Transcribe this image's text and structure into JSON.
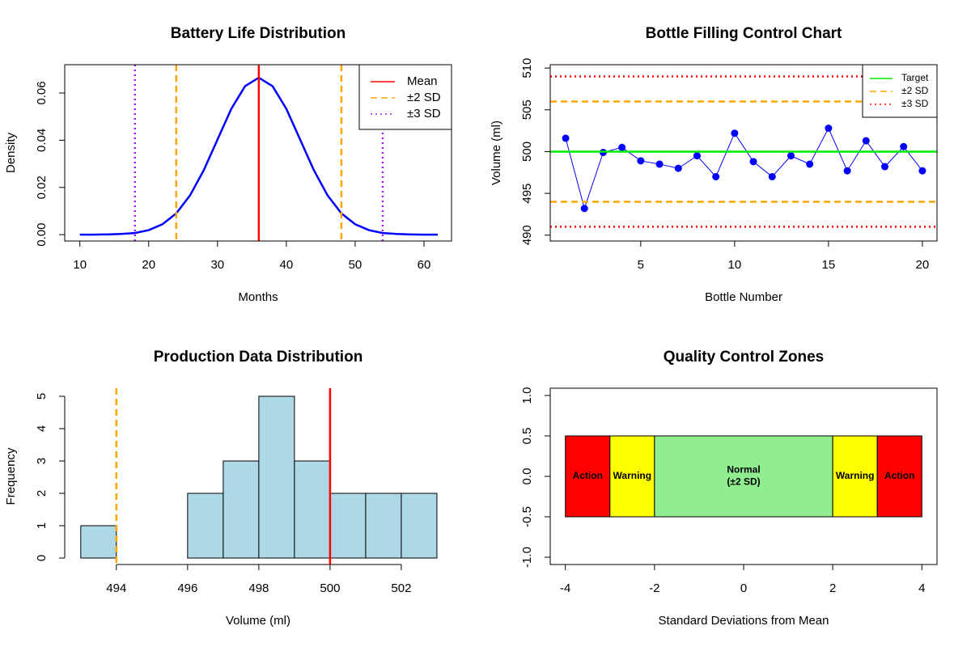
{
  "chart_data": [
    {
      "type": "line",
      "title": "Battery Life Distribution",
      "xlabel": "Months",
      "ylabel": "Density",
      "x": [
        10,
        12,
        14,
        16,
        18,
        20,
        22,
        24,
        26,
        28,
        30,
        32,
        34,
        36,
        38,
        40,
        42,
        44,
        46,
        48,
        50,
        52,
        54,
        56,
        58,
        60,
        62
      ],
      "values": [
        0.0,
        0.0,
        0.0001,
        0.0003,
        0.0007,
        0.0019,
        0.0044,
        0.009,
        0.0166,
        0.0273,
        0.0403,
        0.0533,
        0.0629,
        0.0665,
        0.0629,
        0.0533,
        0.0403,
        0.0273,
        0.0166,
        0.009,
        0.0044,
        0.0019,
        0.0007,
        0.0003,
        0.0001,
        0.0,
        0.0
      ],
      "color": "#0000ff",
      "vlines": [
        {
          "name": "Mean",
          "color": "#ff0000",
          "style": "solid",
          "values": [
            36
          ]
        },
        {
          "name": "±2 SD",
          "color": "#ffa500",
          "style": "dashed",
          "values": [
            24,
            48
          ]
        },
        {
          "name": "±3 SD",
          "color": "#a020f0",
          "style": "dotted",
          "values": [
            18,
            54
          ]
        }
      ],
      "legend": "topright",
      "xlim": [
        7.8,
        64.0
      ],
      "ylim": [
        -0.0027,
        0.072
      ],
      "xticks": [
        10,
        20,
        30,
        40,
        50,
        60
      ],
      "yticks": [
        {
          "value": 0,
          "label": "0.00"
        },
        {
          "value": 0.02,
          "label": "0.02"
        },
        {
          "value": 0.04,
          "label": "0.04"
        },
        {
          "value": 0.06,
          "label": "0.06"
        }
      ]
    },
    {
      "type": "line",
      "title": "Bottle Filling Control Chart",
      "xlabel": "Bottle Number",
      "ylabel": "Volume (ml)",
      "x": [
        1,
        2,
        3,
        4,
        5,
        6,
        7,
        8,
        9,
        10,
        11,
        12,
        13,
        14,
        15,
        16,
        17,
        18,
        19,
        20
      ],
      "values": [
        501.6,
        493.2,
        499.9,
        500.5,
        498.9,
        498.5,
        498.0,
        499.5,
        497.0,
        502.2,
        498.8,
        497.0,
        499.5,
        498.5,
        502.8,
        497.7,
        501.3,
        498.2,
        500.6,
        497.7
      ],
      "color": "#0000ff",
      "markers": true,
      "hlines": [
        {
          "name": "Target",
          "color": "#00ee00",
          "style": "solid",
          "values": [
            500
          ]
        },
        {
          "name": "±2 SD",
          "color": "#ffa500",
          "style": "dashed",
          "values": [
            494,
            506
          ]
        },
        {
          "name": "±3 SD",
          "color": "#ff0000",
          "style": "dotted",
          "values": [
            491,
            509
          ]
        }
      ],
      "legend": "topright",
      "xlim": [
        0.18,
        20.78
      ],
      "ylim": [
        489.3,
        510.4
      ],
      "xticks": [
        5,
        10,
        15,
        20
      ],
      "yticks": [
        490,
        495,
        500,
        505,
        510
      ]
    },
    {
      "type": "histogram",
      "title": "Production Data Distribution",
      "xlabel": "Volume (ml)",
      "ylabel": "Frequency",
      "bins": [
        493,
        494,
        495,
        496,
        497,
        498,
        499,
        500,
        501,
        502,
        503
      ],
      "values": [
        1,
        0,
        0,
        2,
        3,
        5,
        3,
        2,
        2,
        2
      ],
      "color": "#add8e6",
      "vlines": [
        {
          "color": "#ffa500",
          "style": "dashed",
          "values": [
            494
          ]
        },
        {
          "color": "#ff0000",
          "style": "solid",
          "values": [
            500
          ]
        }
      ],
      "xlim": [
        492.55,
        503.41
      ],
      "ylim": [
        -0.2,
        5.25
      ],
      "xticks": [
        494,
        496,
        498,
        500,
        502
      ],
      "yticks": [
        0,
        1,
        2,
        3,
        4,
        5
      ]
    },
    {
      "type": "rect",
      "title": "Quality Control Zones",
      "xlabel": "Standard Deviations from Mean",
      "zones": [
        {
          "label": [
            "Action"
          ],
          "x": [
            -4,
            -3
          ],
          "y": [
            -0.5,
            0.5
          ],
          "color": "#ff0000"
        },
        {
          "label": [
            "Warning"
          ],
          "x": [
            -3,
            -2
          ],
          "y": [
            -0.5,
            0.5
          ],
          "color": "#ffff00"
        },
        {
          "label": [
            "Normal",
            "(±2 SD)"
          ],
          "x": [
            -2,
            2
          ],
          "y": [
            -0.5,
            0.5
          ],
          "color": "#90ee90"
        },
        {
          "label": [
            "Warning"
          ],
          "x": [
            2,
            3
          ],
          "y": [
            -0.5,
            0.5
          ],
          "color": "#ffff00"
        },
        {
          "label": [
            "Action"
          ],
          "x": [
            3,
            4
          ],
          "y": [
            -0.5,
            0.5
          ],
          "color": "#ff0000"
        }
      ],
      "xlim": [
        -4.34,
        4.34
      ],
      "ylim": [
        -1.09,
        1.09
      ],
      "xticks": [
        -4,
        -2,
        0,
        2,
        4
      ],
      "yticks": [
        {
          "value": -1,
          "label": "-1.0"
        },
        {
          "value": -0.5,
          "label": "-0.5"
        },
        {
          "value": 0,
          "label": "0.0"
        },
        {
          "value": 0.5,
          "label": "0.5"
        },
        {
          "value": 1,
          "label": "1.0"
        }
      ]
    }
  ]
}
